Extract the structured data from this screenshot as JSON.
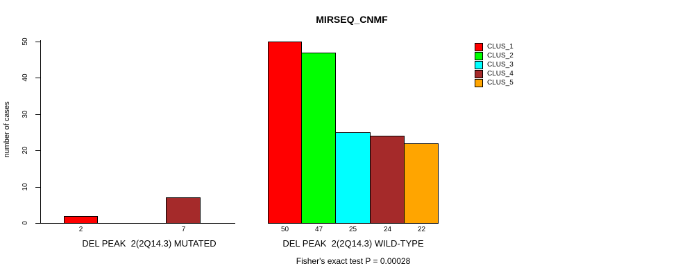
{
  "chart_data": {
    "type": "bar",
    "title": "MIRSEQ_CNMF",
    "ylabel": "number of cases",
    "ylim": [
      0,
      50
    ],
    "yticks": [
      0,
      10,
      20,
      30,
      40,
      50
    ],
    "grid": false,
    "legend_position": "top-right",
    "categories": [
      "CLUS_1",
      "CLUS_2",
      "CLUS_3",
      "CLUS_4",
      "CLUS_5"
    ],
    "series_colors": [
      "#FF0000",
      "#00FF00",
      "#00FFFF",
      "#A52A2A",
      "#FFA500"
    ],
    "groups": [
      {
        "label": "DEL PEAK  2(2Q14.3) MUTATED",
        "values": [
          2,
          0,
          0,
          7,
          0
        ],
        "bar_labels": [
          "2",
          "",
          "",
          "7",
          ""
        ]
      },
      {
        "label": "DEL PEAK  2(2Q14.3) WILD-TYPE",
        "values": [
          50,
          47,
          25,
          24,
          22
        ],
        "bar_labels": [
          "50",
          "47",
          "25",
          "24",
          "22"
        ]
      }
    ],
    "annotation": "Fisher's exact test P = 0.00028"
  },
  "legend": {
    "items": [
      {
        "label": "CLUS_1",
        "color": "#FF0000"
      },
      {
        "label": "CLUS_2",
        "color": "#00FF00"
      },
      {
        "label": "CLUS_3",
        "color": "#00FFFF"
      },
      {
        "label": "CLUS_4",
        "color": "#A52A2A"
      },
      {
        "label": "CLUS_5",
        "color": "#FFA500"
      }
    ]
  }
}
